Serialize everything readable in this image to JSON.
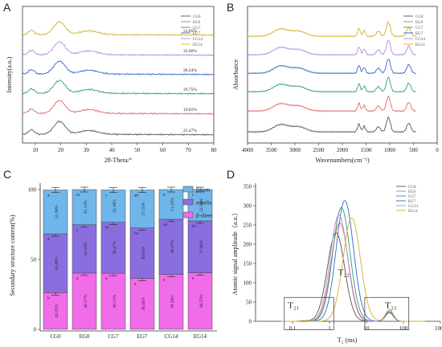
{
  "colors": {
    "CG0": "#555555",
    "EG0": "#e06666",
    "CG7": "#2e9e6a",
    "EG7": "#3366cc",
    "CG14": "#b388e0",
    "EG14": "#d4b02a",
    "beta_turn": "#6fb6ea",
    "alpha_helix": "#8a6ee0",
    "beta_sheet": "#f06ce8"
  },
  "chart_data": [
    {
      "panel": "A",
      "type": "line",
      "xlabel": "2θ-Theta/°",
      "ylabel": "Intensity(a.u.)",
      "xlim": [
        5,
        80
      ],
      "xticks": [
        10,
        20,
        30,
        40,
        50,
        60,
        70,
        80
      ],
      "series": [
        {
          "name": "CG0",
          "crystallinity": "25.47%"
        },
        {
          "name": "EG0",
          "crystallinity": "19.81%"
        },
        {
          "name": "CG7",
          "crystallinity": "29.75%"
        },
        {
          "name": "EG7",
          "crystallinity": "28.24%"
        },
        {
          "name": "CG14",
          "crystallinity": "35.00%"
        },
        {
          "name": "EG14",
          "crystallinity": "31.85%"
        }
      ],
      "curve_offsets": {
        "CG0": 0,
        "EG0": 1,
        "CG7": 2,
        "EG7": 3,
        "CG14": 4,
        "EG14": 5
      },
      "profile_peaks": [
        {
          "x": 8.5,
          "h": 0.35
        },
        {
          "x": 19.5,
          "h": 1.0
        },
        {
          "x": 31,
          "h": 0.3
        }
      ]
    },
    {
      "panel": "B",
      "type": "line",
      "xlabel": "Wavenumbers(cm⁻¹)",
      "ylabel": "Absorbance",
      "xlim": [
        4000,
        0
      ],
      "xticks": [
        4000,
        3500,
        3000,
        2500,
        2000,
        1500,
        1000,
        500,
        0
      ],
      "series": [
        {
          "name": "CG0"
        },
        {
          "name": "EG0"
        },
        {
          "name": "CG7"
        },
        {
          "name": "EG7"
        },
        {
          "name": "CG14"
        },
        {
          "name": "EG14"
        }
      ],
      "profile_peaks": [
        {
          "x": 3300,
          "h": 0.5
        },
        {
          "x": 2925,
          "h": 0.35
        },
        {
          "x": 1650,
          "h": 0.55
        },
        {
          "x": 1540,
          "h": 0.4
        },
        {
          "x": 1240,
          "h": 0.35
        },
        {
          "x": 1030,
          "h": 1.0
        },
        {
          "x": 600,
          "h": 0.6
        }
      ]
    },
    {
      "panel": "C",
      "type": "bar",
      "stacked": true,
      "ylabel": "Secondary structure content(%)",
      "ylim": [
        0,
        100
      ],
      "yticks": [
        0,
        50,
        100
      ],
      "categories": [
        "CG0",
        "EG0",
        "CG7",
        "EG7",
        "CG14",
        "EG14"
      ],
      "legend": [
        "β-turn",
        "α-helix",
        "β-sheet"
      ],
      "series": [
        {
          "name": "β-sheet",
          "values": [
            26.25,
            40.27,
            40.13,
            36.48,
            39.28,
            40.55
          ],
          "labels": [
            "26.25%",
            "40.27%",
            "40.13%",
            "36.48%",
            "39.28%",
            "40.55%"
          ],
          "letters": [
            "b",
            "a",
            "a",
            "a",
            "a",
            "a"
          ]
        },
        {
          "name": "α-helix",
          "values": [
            42.09,
            34.58,
            36.47,
            36.05,
            39.47,
            37.06
          ],
          "labels": [
            "42.09%",
            "34.58%",
            "36.47%",
            "36.05%",
            "39.47%",
            "37.06%"
          ],
          "letters": [
            "a",
            "c",
            "bc",
            "bc",
            "ab",
            "bc"
          ]
        },
        {
          "name": "β-turn",
          "values": [
            31.36,
            25.15,
            23.1,
            27.15,
            21.25,
            22.39
          ],
          "labels": [
            "31.36%",
            "25.15%",
            "23.10%",
            "27.15%",
            "21.25%",
            "22.39%"
          ],
          "letters": [
            "a",
            "bc",
            "c",
            "ab",
            "b",
            "c"
          ]
        }
      ]
    },
    {
      "panel": "D",
      "type": "line",
      "xlabel": "T₂ (ms)",
      "ylabel": "Atomic signal amplitude（a.u.）",
      "xscale": "log",
      "xlim": [
        0.01,
        1000
      ],
      "xticks": [
        "0.1",
        "1",
        "10",
        "100",
        "1000"
      ],
      "xtick_values": [
        0.1,
        1,
        10,
        100,
        1000
      ],
      "ylim": [
        0,
        350
      ],
      "yticks": [
        0,
        50,
        100,
        150,
        200,
        250,
        300,
        350
      ],
      "peak_labels": [
        "T₂₁",
        "T₂₂",
        "T₂₃"
      ],
      "series": [
        {
          "name": "CG0",
          "peak_t2": 1.5,
          "peak_amp": 230
        },
        {
          "name": "EG0",
          "peak_t2": 1.9,
          "peak_amp": 255
        },
        {
          "name": "CG7",
          "peak_t2": 2.1,
          "peak_amp": 295
        },
        {
          "name": "EG7",
          "peak_t2": 2.6,
          "peak_amp": 313
        },
        {
          "name": "CG14",
          "peak_t2": 1.8,
          "peak_amp": 276
        },
        {
          "name": "EG14",
          "peak_t2": 4.0,
          "peak_amp": 268
        }
      ]
    }
  ]
}
